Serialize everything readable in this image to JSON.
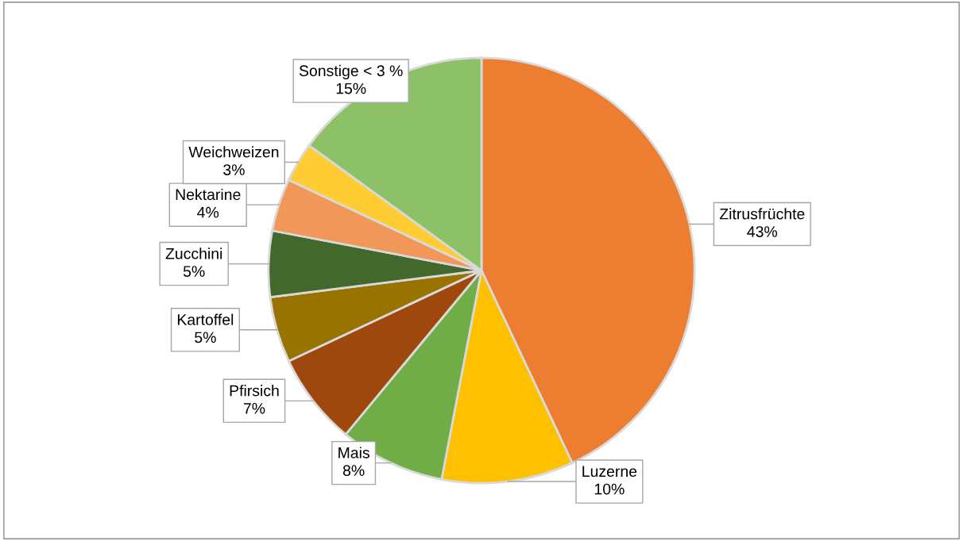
{
  "chart_data": {
    "type": "pie",
    "categories": [
      "Zitrusfrüchte",
      "Luzerne",
      "Mais",
      "Pfirsich",
      "Kartoffel",
      "Zucchini",
      "Nektarine",
      "Weichweizen",
      "Sonstige < 3 %"
    ],
    "values": [
      43,
      10,
      8,
      7,
      5,
      5,
      4,
      3,
      15
    ],
    "value_labels": [
      "43%",
      "10%",
      "8%",
      "7%",
      "5%",
      "5%",
      "4%",
      "3%",
      "15%"
    ],
    "colors": [
      "#ed7d31",
      "#ffc000",
      "#70ad47",
      "#9e480e",
      "#997300",
      "#43682b",
      "#f1975a",
      "#ffcd33",
      "#8cc168"
    ]
  }
}
